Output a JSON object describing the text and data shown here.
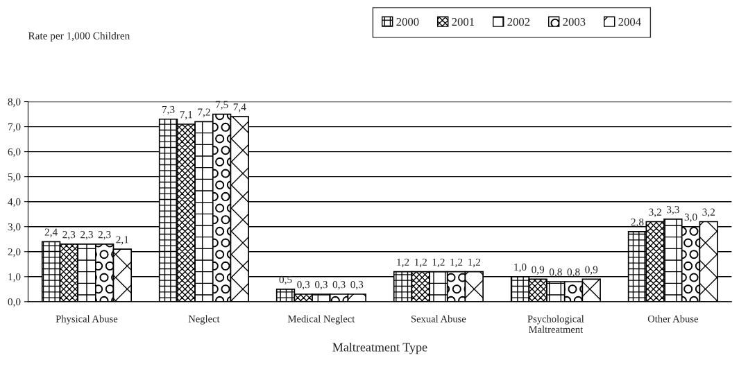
{
  "chart_data": {
    "type": "bar",
    "annotations": [
      "Rate per 1,000 Children"
    ],
    "xlabel": "Maltreatment Type",
    "categories": [
      "Physical Abuse",
      "Neglect",
      "Medical Neglect",
      "Sexual Abuse",
      "Psychological\nMaltreatment",
      "Other Abuse"
    ],
    "series": [
      {
        "name": "2000",
        "color": "#000000",
        "values": [
          2.4,
          7.3,
          0.5,
          1.2,
          1.0,
          2.8
        ],
        "value_labels": [
          "2,4",
          "7,3",
          "0,5",
          "1,2",
          "1,0",
          "2,8"
        ]
      },
      {
        "name": "2001",
        "color": "#000000",
        "values": [
          2.3,
          7.1,
          0.3,
          1.2,
          0.9,
          3.2
        ],
        "value_labels": [
          "2,3",
          "7,1",
          "0,3",
          "1,2",
          "0,9",
          "3,2"
        ]
      },
      {
        "name": "2002",
        "color": "#000000",
        "values": [
          2.3,
          7.2,
          0.3,
          1.2,
          0.8,
          3.3
        ],
        "value_labels": [
          "2,3",
          "7,2",
          "0,3",
          "1,2",
          "0,8",
          "3,3"
        ]
      },
      {
        "name": "2003",
        "color": "#000000",
        "values": [
          2.3,
          7.5,
          0.3,
          1.2,
          0.8,
          3.0
        ],
        "value_labels": [
          "2,3",
          "7,5",
          "0,3",
          "1,2",
          "0,8",
          "3,0"
        ]
      },
      {
        "name": "2004",
        "color": "#000000",
        "values": [
          2.1,
          7.4,
          0.3,
          1.2,
          0.9,
          3.2
        ],
        "value_labels": [
          "2,1",
          "7,4",
          "0,3",
          "1,2",
          "0,9",
          "3,2"
        ]
      }
    ],
    "ylim": [
      0,
      8
    ],
    "yticks": [
      {
        "value": 0,
        "label": "0,0"
      },
      {
        "value": 1,
        "label": "1,0"
      },
      {
        "value": 2,
        "label": "2,0"
      },
      {
        "value": 3,
        "label": "3,0"
      },
      {
        "value": 4,
        "label": "4,0"
      },
      {
        "value": 5,
        "label": "5,0"
      },
      {
        "value": 6,
        "label": "6,0"
      },
      {
        "value": 7,
        "label": "7,0"
      },
      {
        "value": 8,
        "label": "8,0"
      }
    ],
    "grid": "y",
    "legend": "top right"
  }
}
